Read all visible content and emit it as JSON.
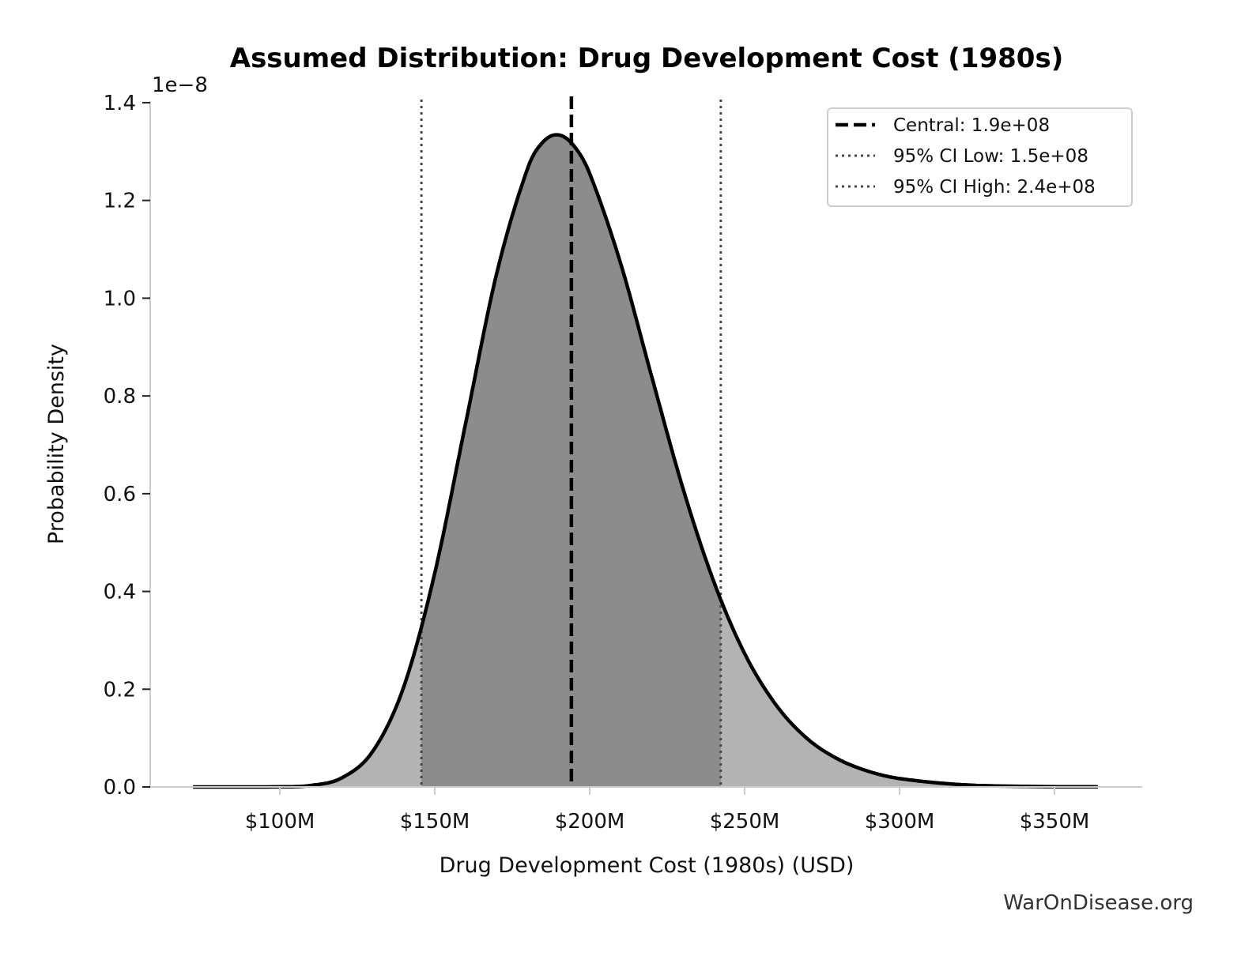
{
  "chart_data": {
    "type": "area",
    "title": "Assumed Distribution: Drug Development Cost (1980s)",
    "xlabel": "Drug Development Cost (1980s) (USD)",
    "ylabel": "Probability Density",
    "y_multiplier_label": "1e−8",
    "xlim": [
      60,
      380
    ],
    "ylim": [
      0,
      1.4
    ],
    "x_ticks": [
      100,
      150,
      200,
      250,
      300,
      350
    ],
    "x_tick_labels": [
      "$100M",
      "$150M",
      "$200M",
      "$250M",
      "$300M",
      "$350M"
    ],
    "y_ticks": [
      0,
      0.2,
      0.4,
      0.6,
      0.8,
      1.0,
      1.2,
      1.4
    ],
    "y_tick_labels": [
      "0.0",
      "0.2",
      "0.4",
      "0.6",
      "0.8",
      "1.0",
      "1.2",
      "1.4"
    ],
    "grid": false,
    "curve": {
      "x": [
        72,
        100,
        110,
        120,
        130,
        140,
        150,
        160,
        170,
        180,
        185,
        190,
        195,
        200,
        210,
        220,
        230,
        240,
        250,
        260,
        270,
        280,
        290,
        300,
        320,
        340,
        364
      ],
      "y": [
        0,
        0.0003,
        0.0031,
        0.0186,
        0.073,
        0.205,
        0.4375,
        0.745,
        1.051,
        1.266,
        1.32,
        1.334,
        1.311,
        1.255,
        1.071,
        0.84,
        0.613,
        0.421,
        0.273,
        0.169,
        0.1,
        0.0575,
        0.0319,
        0.0172,
        0.0047,
        0.0012,
        0.0002
      ]
    },
    "lines": [
      {
        "name": "Central: 1.9e+08",
        "x": 194.1,
        "style": "dashed",
        "color": "#000000"
      },
      {
        "name": "95% CI Low: 1.5e+08",
        "x": 145.7,
        "style": "dotted",
        "color": "#444444"
      },
      {
        "name": "95% CI High: 2.4e+08",
        "x": 242.3,
        "style": "dotted",
        "color": "#444444"
      }
    ],
    "legend_position": "top-right",
    "colors": {
      "curve": "#000000",
      "tail_fill": "#b3b3b3",
      "ci_fill": "#8c8c8c",
      "spine": "#cccccc"
    }
  },
  "watermark": "WarOnDisease.org"
}
